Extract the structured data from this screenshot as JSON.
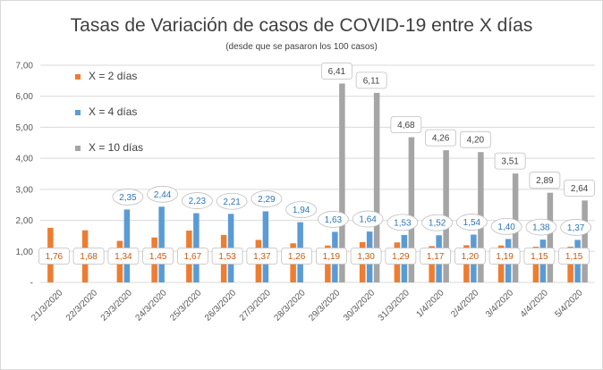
{
  "chart_data": {
    "type": "bar",
    "title": "Tasas de Variación de casos de COVID-19 entre X días",
    "subtitle": "(desde que se pasaron los 100 casos)",
    "xlabel": "",
    "ylabel": "",
    "ylim": [
      0,
      7
    ],
    "yticks": [
      "-",
      "1,00",
      "2,00",
      "3,00",
      "4,00",
      "5,00",
      "6,00",
      "7,00"
    ],
    "grid": true,
    "legend_position": "top-left",
    "categories": [
      "21/3/2020",
      "22/3/2020",
      "23/3/2020",
      "24/3/2020",
      "25/3/2020",
      "26/3/2020",
      "27/3/2020",
      "28/3/2020",
      "29/3/2020",
      "30/3/2020",
      "31/3/2020",
      "1/4/2020",
      "2/4/2020",
      "3/4/2020",
      "4/4/2020",
      "5/4/2020"
    ],
    "series": [
      {
        "name": "X = 2 días",
        "color": "#ED7D31",
        "label_color": "#C55A11",
        "values": [
          1.76,
          1.68,
          1.34,
          1.45,
          1.67,
          1.53,
          1.37,
          1.26,
          1.19,
          1.3,
          1.29,
          1.17,
          1.2,
          1.19,
          1.15,
          1.15
        ],
        "labels": [
          "1,76",
          "1,68",
          "1,34",
          "1,45",
          "1,67",
          "1,53",
          "1,37",
          "1,26",
          "1,19",
          "1,30",
          "1,29",
          "1,17",
          "1,20",
          "1,19",
          "1,15",
          "1,15"
        ]
      },
      {
        "name": "X = 4 días",
        "color": "#5B9BD5",
        "label_color": "#2E75B6",
        "values": [
          null,
          null,
          2.35,
          2.44,
          2.23,
          2.21,
          2.29,
          1.94,
          1.63,
          1.64,
          1.53,
          1.52,
          1.54,
          1.4,
          1.38,
          1.37
        ],
        "labels": [
          null,
          null,
          "2,35",
          "2,44",
          "2,23",
          "2,21",
          "2,29",
          "1,94",
          "1,63",
          "1,64",
          "1,53",
          "1,52",
          "1,54",
          "1,40",
          "1,38",
          "1,37"
        ]
      },
      {
        "name": "X = 10 días",
        "color": "#A5A5A5",
        "label_color": "#404040",
        "values": [
          null,
          null,
          null,
          null,
          null,
          null,
          null,
          null,
          6.41,
          6.11,
          4.68,
          4.26,
          4.2,
          3.51,
          2.89,
          2.64
        ],
        "labels": [
          null,
          null,
          null,
          null,
          null,
          null,
          null,
          null,
          "6,41",
          "6,11",
          "4,68",
          "4,26",
          "4,20",
          "3,51",
          "2,89",
          "2,64"
        ]
      }
    ]
  }
}
